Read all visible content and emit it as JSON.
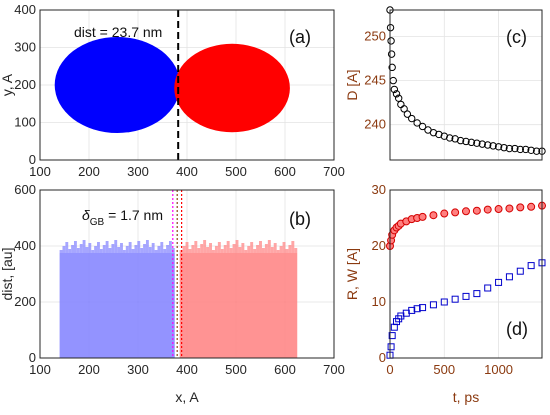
{
  "chart_data": [
    {
      "panel": "(a)",
      "type": "scatter",
      "xlim": [
        100,
        700
      ],
      "ylim": [
        0,
        400
      ],
      "x_ticks": [
        "100",
        "200",
        "300",
        "400",
        "500",
        "600",
        "700"
      ],
      "y_ticks": [
        "0",
        "100",
        "200",
        "300",
        "400"
      ],
      "ylabel": "y, A",
      "annotation": "dist = 23.7 nm",
      "grid": true,
      "series": [
        {
          "color": "#0000ff",
          "cx": 258,
          "cy": 200,
          "r": 128
        },
        {
          "color": "#ff0000",
          "cx": 492,
          "cy": 192,
          "r": 118
        }
      ],
      "dashed_line_x": 382
    },
    {
      "panel": "(b)",
      "type": "bar",
      "xlim": [
        100,
        700
      ],
      "ylim": [
        0,
        600
      ],
      "x_ticks": [
        "100",
        "200",
        "300",
        "400",
        "500",
        "600",
        "700"
      ],
      "y_ticks": [
        "0",
        "200",
        "400",
        "600"
      ],
      "xlabel": "x, A",
      "ylabel": "dist, [au]",
      "annotation_prefix": "δ",
      "annotation_sub": "GB",
      "annotation_suffix": " = 1.7 nm",
      "grid": true,
      "series": [
        {
          "color": "#8080ff",
          "x_start": 140,
          "x_end": 375,
          "level": 375
        },
        {
          "color": "#ff8080",
          "x_start": 385,
          "x_end": 625,
          "level": 375
        }
      ],
      "gb_lines_x": [
        371,
        380,
        389
      ]
    },
    {
      "panel": "(c)",
      "type": "scatter",
      "xlim": [
        0,
        1400
      ],
      "ylim": [
        236,
        253
      ],
      "y_ticks": [
        "240",
        "245",
        "250"
      ],
      "ylabel": "D [A]",
      "grid": true,
      "series": [
        {
          "color": "#000000",
          "marker": "circle",
          "x": [
            0,
            5,
            10,
            15,
            20,
            30,
            40,
            60,
            80,
            100,
            130,
            160,
            200,
            250,
            300,
            350,
            400,
            450,
            500,
            550,
            600,
            650,
            700,
            750,
            800,
            850,
            900,
            950,
            1000,
            1050,
            1100,
            1150,
            1200,
            1250,
            1300,
            1350,
            1400
          ],
          "y": [
            253,
            251,
            249.5,
            248,
            246.5,
            245,
            244,
            243.5,
            243,
            242.3,
            241.8,
            241.2,
            240.7,
            240.2,
            239.8,
            239.4,
            239.1,
            238.9,
            238.7,
            238.5,
            238.4,
            238.2,
            238.1,
            238.0,
            237.9,
            237.8,
            237.7,
            237.6,
            237.5,
            237.4,
            237.3,
            237.3,
            237.2,
            237.2,
            237.1,
            237.0,
            237.0
          ]
        }
      ]
    },
    {
      "panel": "(d)",
      "type": "scatter",
      "xlim": [
        0,
        1400
      ],
      "ylim": [
        0,
        30
      ],
      "x_ticks": [
        "0",
        "500",
        "1000"
      ],
      "y_ticks": [
        "0",
        "10",
        "20",
        "30"
      ],
      "xlabel": "t, ps",
      "ylabel": "R, W [A]",
      "grid": true,
      "series": [
        {
          "color": "#d40000",
          "marker": "circle",
          "x": [
            0,
            10,
            20,
            40,
            60,
            80,
            100,
            150,
            200,
            250,
            300,
            400,
            500,
            600,
            700,
            800,
            900,
            1000,
            1100,
            1200,
            1300,
            1400
          ],
          "y": [
            20,
            21,
            22,
            22.8,
            23.3,
            23.6,
            24,
            24.4,
            24.8,
            25,
            25.2,
            25.5,
            25.8,
            26,
            26.2,
            26.3,
            26.5,
            26.6,
            26.7,
            26.9,
            27,
            27.2
          ]
        },
        {
          "color": "#0000cc",
          "marker": "square",
          "x": [
            0,
            10,
            20,
            40,
            60,
            80,
            100,
            150,
            200,
            250,
            300,
            400,
            500,
            600,
            700,
            800,
            900,
            1000,
            1100,
            1200,
            1300,
            1400
          ],
          "y": [
            0.5,
            2,
            4,
            5.5,
            6.5,
            7,
            7.5,
            8,
            8.5,
            8.8,
            9,
            9.5,
            10,
            10.5,
            11,
            11.5,
            12.5,
            13.5,
            14.5,
            15.5,
            16.5,
            17
          ]
        }
      ]
    }
  ]
}
